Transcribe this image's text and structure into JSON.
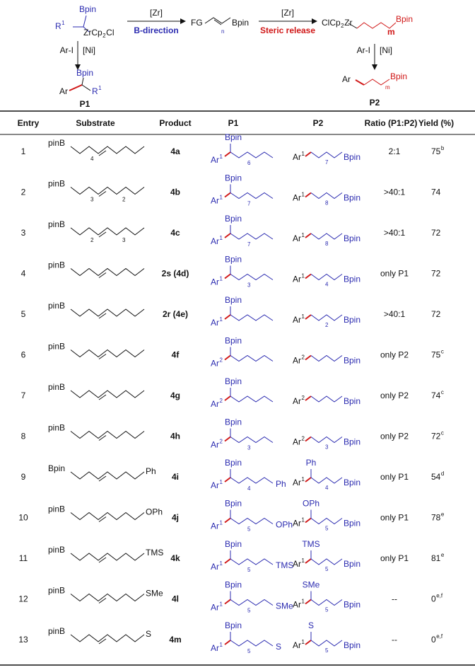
{
  "scheme": {
    "reactant": {
      "fg": "FG",
      "n": "n",
      "bpin": "Bpin"
    },
    "left_arrow": {
      "reagent": "[Zr]",
      "label": "B-direction"
    },
    "right_arrow": {
      "reagent": "[Zr]",
      "label": "Steric release"
    },
    "left_intermediate": {
      "bpin": "Bpin",
      "r": "R",
      "r_sup": "1",
      "zr": "ZrCp",
      "zr_sub": "2",
      "zr_end": "Cl"
    },
    "right_intermediate": {
      "zr": "ClCp",
      "zr_sub": "2",
      "zr_end": "Zr",
      "m": "m",
      "bpin": "Bpin"
    },
    "left_step": {
      "reagent": "Ar-I",
      "catalyst": "[Ni]"
    },
    "right_step": {
      "reagent": "Ar-I",
      "catalyst": "[Ni]"
    },
    "p1": {
      "bpin": "Bpin",
      "ar": "Ar",
      "r": "R",
      "r_sup": "1",
      "label": "P1"
    },
    "p2": {
      "ar": "Ar",
      "m": "m",
      "bpin": "Bpin",
      "label": "P2"
    }
  },
  "table": {
    "headers": [
      "Entry",
      "Substrate",
      "Product",
      "P1",
      "P2",
      "Ratio (P1:P2)",
      "Yield (%)"
    ],
    "rows": [
      {
        "entry": 1,
        "substrate": {
          "head": "pinB",
          "subs": [
            "4"
          ],
          "tail": null
        },
        "product": "4a",
        "p1": {
          "bpin": "Bpin",
          "ar": "Ar",
          "ar_sup": "1",
          "n": "6",
          "tail": null
        },
        "p2": {
          "top": null,
          "ar": "Ar",
          "ar_sup": "1",
          "n": "7",
          "bpin": "Bpin"
        },
        "ratio": "2:1",
        "yield": {
          "value": 75,
          "note": "b"
        }
      },
      {
        "entry": 2,
        "substrate": {
          "head": "pinB",
          "subs": [
            "3",
            "2"
          ],
          "tail": null
        },
        "product": "4b",
        "p1": {
          "bpin": "Bpin",
          "ar": "Ar",
          "ar_sup": "1",
          "n": "7",
          "tail": null
        },
        "p2": {
          "top": null,
          "ar": "Ar",
          "ar_sup": "1",
          "n": "8",
          "bpin": "Bpin"
        },
        "ratio": ">40:1",
        "yield": {
          "value": 74,
          "note": null
        }
      },
      {
        "entry": 3,
        "substrate": {
          "head": "pinB",
          "subs": [
            "2",
            "3"
          ],
          "tail": null
        },
        "product": "4c",
        "p1": {
          "bpin": "Bpin",
          "ar": "Ar",
          "ar_sup": "1",
          "n": "7",
          "tail": null
        },
        "p2": {
          "top": null,
          "ar": "Ar",
          "ar_sup": "1",
          "n": "8",
          "bpin": "Bpin"
        },
        "ratio": ">40:1",
        "yield": {
          "value": 72,
          "note": null
        }
      },
      {
        "entry": 4,
        "substrate": {
          "head": "pinB",
          "subs": [],
          "tail": null
        },
        "product": "2s (4d)",
        "p1": {
          "bpin": "Bpin",
          "ar": "Ar",
          "ar_sup": "1",
          "n": "3",
          "tail": null
        },
        "p2": {
          "top": null,
          "ar": "Ar",
          "ar_sup": "1",
          "n": "4",
          "bpin": "Bpin"
        },
        "ratio": "only P1",
        "yield": {
          "value": 72,
          "note": null
        }
      },
      {
        "entry": 5,
        "substrate": {
          "head": "pinB",
          "subs": [],
          "tail": null
        },
        "product": "2r (4e)",
        "p1": {
          "bpin": "Bpin",
          "ar": "Ar",
          "ar_sup": "1",
          "n": null,
          "tail": null
        },
        "p2": {
          "top": null,
          "ar": "Ar",
          "ar_sup": "1",
          "n": "2",
          "bpin": "Bpin"
        },
        "ratio": ">40:1",
        "yield": {
          "value": 72,
          "note": null
        }
      },
      {
        "entry": 6,
        "substrate": {
          "head": "pinB",
          "subs": [],
          "tail": null
        },
        "product": "4f",
        "p1": {
          "bpin": "Bpin",
          "ar": "Ar",
          "ar_sup": "2",
          "n": null,
          "tail": null
        },
        "p2": {
          "top": null,
          "ar": "Ar",
          "ar_sup": "2",
          "n": null,
          "bpin": "Bpin"
        },
        "ratio": "only P2",
        "yield": {
          "value": 75,
          "note": "c"
        }
      },
      {
        "entry": 7,
        "substrate": {
          "head": "pinB",
          "subs": [],
          "tail": null
        },
        "product": "4g",
        "p1": {
          "bpin": "Bpin",
          "ar": "Ar",
          "ar_sup": "2",
          "n": null,
          "tail": null
        },
        "p2": {
          "top": null,
          "ar": "Ar",
          "ar_sup": "2",
          "n": null,
          "bpin": "Bpin"
        },
        "ratio": "only P2",
        "yield": {
          "value": 74,
          "note": "c"
        }
      },
      {
        "entry": 8,
        "substrate": {
          "head": "pinB",
          "subs": [],
          "tail": null
        },
        "product": "4h",
        "p1": {
          "bpin": "Bpin",
          "ar": "Ar",
          "ar_sup": "2",
          "n": "3",
          "tail": null
        },
        "p2": {
          "top": null,
          "ar": "Ar",
          "ar_sup": "2",
          "n": "3",
          "bpin": "Bpin"
        },
        "ratio": "only P2",
        "yield": {
          "value": 72,
          "note": "c"
        }
      },
      {
        "entry": 9,
        "substrate": {
          "head": "Bpin",
          "subs": [],
          "tail": "Ph"
        },
        "product": "4i",
        "p1": {
          "bpin": "Bpin",
          "ar": "Ar",
          "ar_sup": "1",
          "n": "4",
          "tail": "Ph"
        },
        "p2": {
          "top": "Ph",
          "ar": "Ar",
          "ar_sup": "1",
          "n": "4",
          "bpin": "Bpin"
        },
        "ratio": "only P1",
        "yield": {
          "value": 54,
          "note": "d"
        }
      },
      {
        "entry": 10,
        "substrate": {
          "head": "pinB",
          "subs": [],
          "tail": "OPh"
        },
        "product": "4j",
        "p1": {
          "bpin": "Bpin",
          "ar": "Ar",
          "ar_sup": "1",
          "n": "5",
          "tail": "OPh"
        },
        "p2": {
          "top": "OPh",
          "ar": "Ar",
          "ar_sup": "1",
          "n": "5",
          "bpin": "Bpin"
        },
        "ratio": "only P1",
        "yield": {
          "value": 78,
          "note": "e"
        }
      },
      {
        "entry": 11,
        "substrate": {
          "head": "pinB",
          "subs": [],
          "tail": "TMS"
        },
        "product": "4k",
        "p1": {
          "bpin": "Bpin",
          "ar": "Ar",
          "ar_sup": "1",
          "n": "5",
          "tail": "TMS"
        },
        "p2": {
          "top": "TMS",
          "ar": "Ar",
          "ar_sup": "1",
          "n": "5",
          "bpin": "Bpin"
        },
        "ratio": "only P1",
        "yield": {
          "value": 81,
          "note": "e"
        }
      },
      {
        "entry": 12,
        "substrate": {
          "head": "pinB",
          "subs": [],
          "tail": "SMe"
        },
        "product": "4l",
        "p1": {
          "bpin": "Bpin",
          "ar": "Ar",
          "ar_sup": "1",
          "n": "5",
          "tail": "SMe"
        },
        "p2": {
          "top": "SMe",
          "ar": "Ar",
          "ar_sup": "1",
          "n": "5",
          "bpin": "Bpin"
        },
        "ratio": "--",
        "yield": {
          "value": 0,
          "note": "e,f"
        }
      },
      {
        "entry": 13,
        "substrate": {
          "head": "pinB",
          "subs": [],
          "tail": "S"
        },
        "product": "4m",
        "p1": {
          "bpin": "Bpin",
          "ar": "Ar",
          "ar_sup": "1",
          "n": "5",
          "tail": "S"
        },
        "p2": {
          "top": "S",
          "ar": "Ar",
          "ar_sup": "1",
          "n": "5",
          "bpin": "Bpin"
        },
        "ratio": "--",
        "yield": {
          "value": 0,
          "note": "e,f"
        }
      }
    ]
  }
}
